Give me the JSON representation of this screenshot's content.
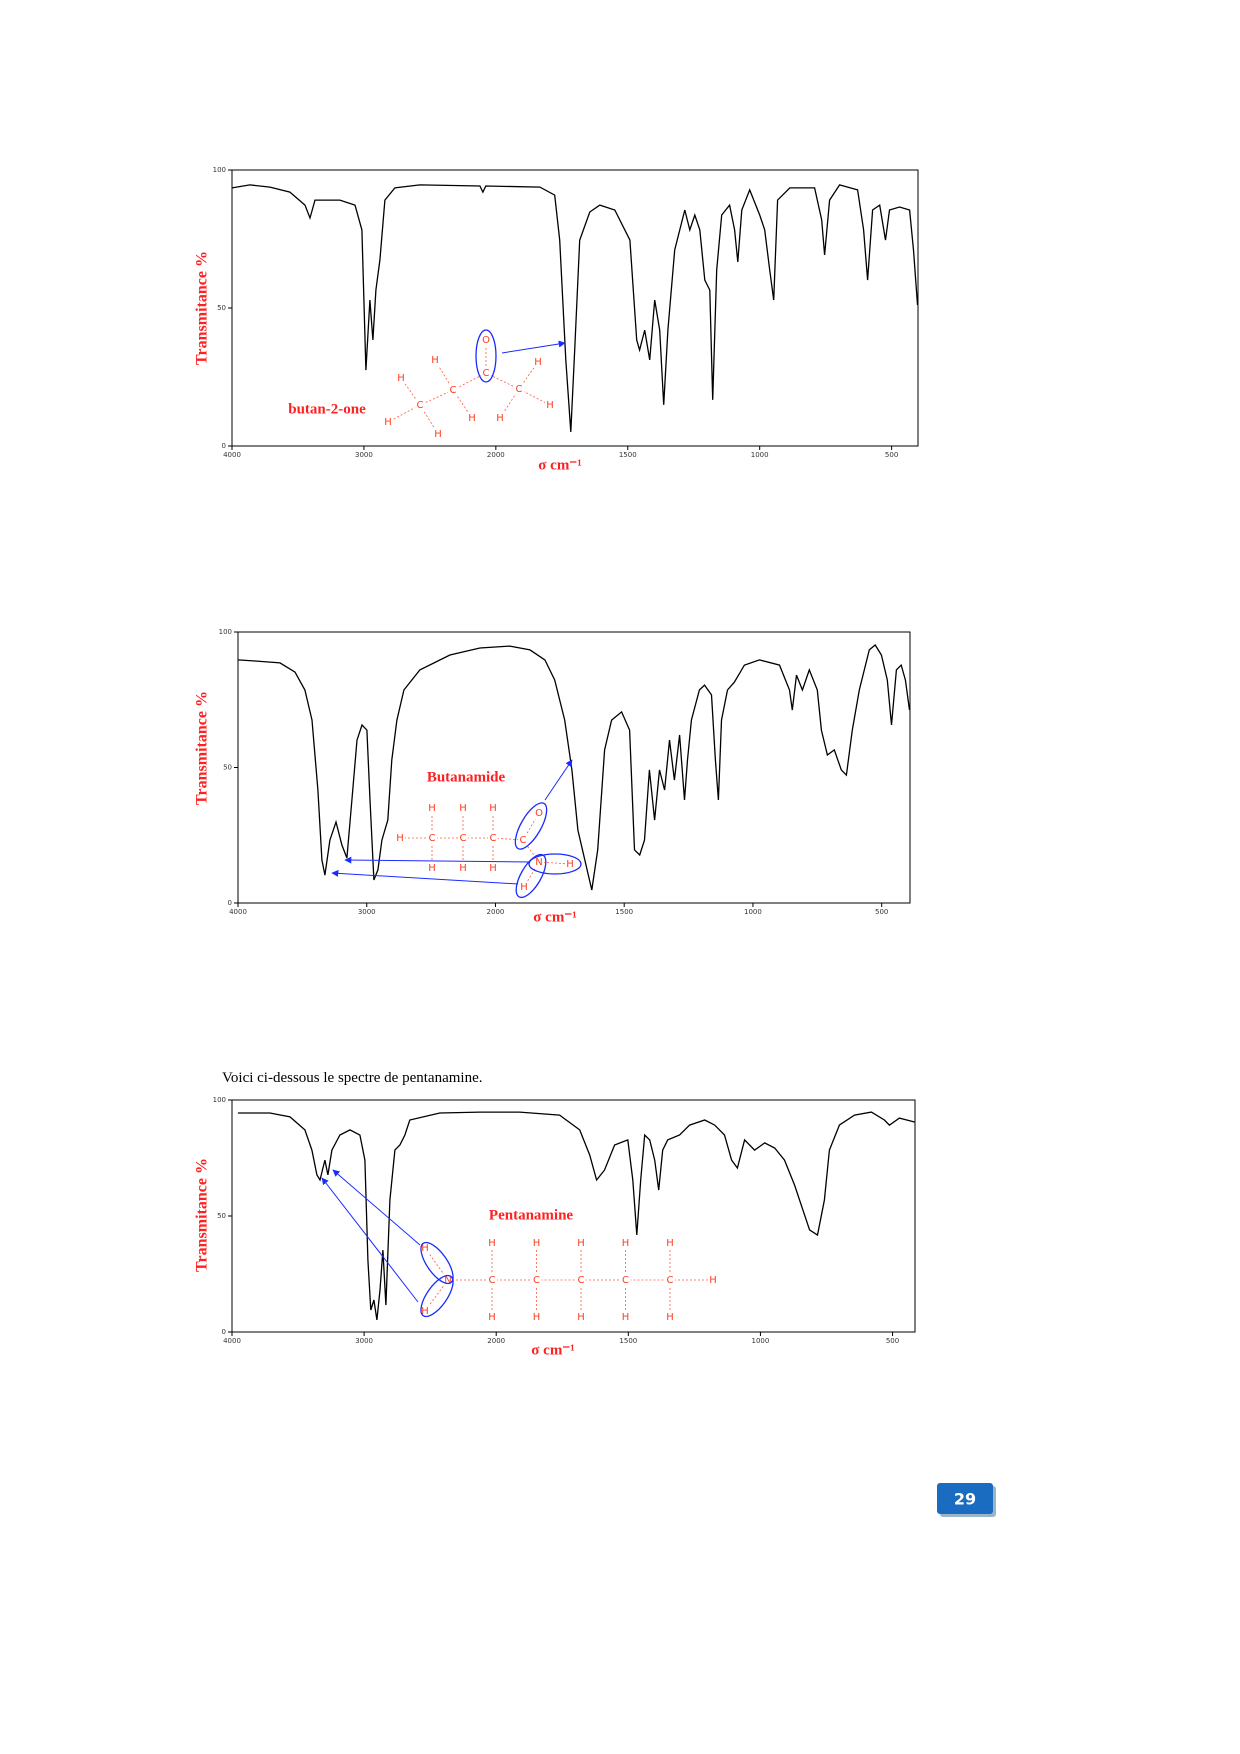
{
  "chart_data": [
    {
      "type": "line",
      "xscale": "piecewise-linear",
      "y_label": "Transmitance  %",
      "x_label": "σ   cm⁻¹",
      "color": "#000000",
      "xlim": [
        4000,
        400
      ],
      "xticks": [
        4000,
        3000,
        2000,
        1500,
        1000,
        500
      ],
      "ylim": [
        0,
        100
      ],
      "yticks": [
        0,
        50,
        100
      ],
      "x": [
        4000,
        3864,
        3712,
        3561,
        3447,
        3409,
        3371,
        3182,
        3068,
        3015,
        2985,
        2955,
        2932,
        2909,
        2879,
        2841,
        2765,
        2576,
        2121,
        2098,
        2076,
        1833,
        1777,
        1758,
        1735,
        1716,
        1701,
        1682,
        1644,
        1606,
        1549,
        1492,
        1466,
        1455,
        1436,
        1417,
        1398,
        1379,
        1364,
        1348,
        1322,
        1284,
        1265,
        1246,
        1227,
        1208,
        1189,
        1178,
        1163,
        1144,
        1114,
        1095,
        1083,
        1068,
        1038,
        1000,
        981,
        962,
        947,
        932,
        886,
        792,
        765,
        754,
        735,
        697,
        629,
        606,
        591,
        572,
        545,
        523,
        508,
        470,
        432,
        417,
        402
      ],
      "values": [
        93.5,
        94.6,
        93.8,
        92.0,
        87.3,
        82.6,
        89.1,
        89.1,
        87.3,
        78.3,
        27.5,
        52.9,
        38.4,
        56.5,
        67.4,
        89.1,
        93.5,
        94.6,
        94.2,
        92.0,
        94.2,
        93.8,
        90.9,
        74.6,
        31.2,
        5.1,
        34.8,
        74.6,
        84.8,
        87.3,
        85.5,
        74.6,
        38.4,
        34.8,
        42.0,
        31.2,
        52.9,
        42.0,
        14.9,
        42.0,
        71.0,
        85.5,
        78.3,
        83.7,
        78.3,
        60.1,
        56.5,
        16.7,
        63.8,
        83.7,
        87.3,
        78.3,
        66.7,
        85.5,
        92.8,
        83.7,
        78.3,
        63.8,
        52.9,
        89.1,
        93.5,
        93.5,
        81.9,
        69.2,
        89.1,
        94.6,
        92.8,
        78.3,
        60.1,
        85.5,
        87.3,
        74.6,
        85.5,
        86.6,
        85.5,
        71.0,
        51.1
      ],
      "molecule": {
        "name": "butan-2-one",
        "atoms": [
          "O",
          "C",
          "H",
          "H",
          "C",
          "C",
          "H",
          "H",
          "H",
          "C",
          "H",
          "H",
          "H"
        ]
      }
    },
    {
      "type": "line",
      "xscale": "piecewise-linear",
      "y_label": "Transmitance  %",
      "x_label": "σ   cm⁻¹",
      "color": "#000000",
      "xlim": [
        4000,
        390
      ],
      "xticks": [
        4000,
        3000,
        2000,
        1500,
        1000,
        500
      ],
      "ylim": [
        0,
        100
      ],
      "yticks": [
        0,
        50,
        100
      ],
      "x": [
        4000,
        3868,
        3674,
        3557,
        3480,
        3425,
        3379,
        3348,
        3325,
        3286,
        3239,
        3193,
        3154,
        3115,
        3076,
        3037,
        2999,
        2975,
        2944,
        2913,
        2882,
        2836,
        2805,
        2766,
        2711,
        2587,
        2354,
        2121,
        1944,
        1866,
        1808,
        1770,
        1731,
        1703,
        1680,
        1653,
        1626,
        1603,
        1576,
        1549,
        1510,
        1479,
        1460,
        1440,
        1421,
        1402,
        1382,
        1363,
        1343,
        1324,
        1305,
        1285,
        1266,
        1254,
        1239,
        1208,
        1188,
        1161,
        1146,
        1134,
        1122,
        1099,
        1072,
        1033,
        975,
        897,
        858,
        847,
        831,
        808,
        781,
        750,
        734,
        711,
        684,
        657,
        637,
        614,
        587,
        548,
        525,
        501,
        478,
        462,
        443,
        424,
        408,
        392
      ],
      "values": [
        89.7,
        89.3,
        88.6,
        85.2,
        78.6,
        67.5,
        41.7,
        15.9,
        10.3,
        23.2,
        29.9,
        21.4,
        16.6,
        38.0,
        60.1,
        65.7,
        63.8,
        38.0,
        8.5,
        12.2,
        23.2,
        30.6,
        52.8,
        67.5,
        78.6,
        86.0,
        91.5,
        94.1,
        94.8,
        93.4,
        89.7,
        82.3,
        67.5,
        49.1,
        26.9,
        15.9,
        4.8,
        19.6,
        56.5,
        67.5,
        70.5,
        63.8,
        19.6,
        17.7,
        23.2,
        49.1,
        30.6,
        49.1,
        41.7,
        60.1,
        45.4,
        62.0,
        38.0,
        52.8,
        67.5,
        78.6,
        80.4,
        76.8,
        52.8,
        38.0,
        67.5,
        78.6,
        81.5,
        87.8,
        89.7,
        87.8,
        78.6,
        71.2,
        84.1,
        78.6,
        86.0,
        78.6,
        63.8,
        54.6,
        56.5,
        49.1,
        47.2,
        63.8,
        78.6,
        93.4,
        95.2,
        91.5,
        82.3,
        65.7,
        86.0,
        87.8,
        82.3,
        71.2
      ],
      "molecule": {
        "name": "Butanamide",
        "atoms": [
          "H",
          "H",
          "H",
          "H",
          "C",
          "C",
          "C",
          "H",
          "H",
          "H",
          "C",
          "O",
          "N",
          "H",
          "H"
        ]
      }
    },
    {
      "type": "line",
      "xscale": "piecewise-linear",
      "y_label": "Transmitance  %",
      "x_label": "σ   cm⁻¹",
      "color": "#000000",
      "xlim": [
        4000,
        415
      ],
      "xticks": [
        4000,
        3000,
        2000,
        1500,
        1000,
        500
      ],
      "ylim": [
        0,
        100
      ],
      "yticks": [
        0,
        50,
        100
      ],
      "x": [
        3955,
        3713,
        3561,
        3448,
        3395,
        3357,
        3334,
        3297,
        3274,
        3244,
        3183,
        3107,
        3032,
        2994,
        2971,
        2949,
        2926,
        2903,
        2880,
        2858,
        2835,
        2805,
        2767,
        2729,
        2691,
        2654,
        2427,
        2124,
        1911,
        1760,
        1684,
        1646,
        1620,
        1590,
        1552,
        1502,
        1483,
        1468,
        1453,
        1438,
        1419,
        1400,
        1385,
        1370,
        1351,
        1306,
        1268,
        1211,
        1173,
        1136,
        1109,
        1087,
        1060,
        1022,
        984,
        946,
        909,
        871,
        833,
        814,
        784,
        758,
        739,
        701,
        644,
        580,
        531,
        512,
        474,
        417
      ],
      "values": [
        94.4,
        94.4,
        92.7,
        87.1,
        78.4,
        67.7,
        65.5,
        74.1,
        67.7,
        78.4,
        84.9,
        87.1,
        84.9,
        74.1,
        31.0,
        9.5,
        13.8,
        5.2,
        18.1,
        35.3,
        11.6,
        56.9,
        78.4,
        80.6,
        84.9,
        91.4,
        94.4,
        94.8,
        94.8,
        93.5,
        87.1,
        76.3,
        65.5,
        69.8,
        80.6,
        82.8,
        65.5,
        41.8,
        65.5,
        84.9,
        82.8,
        74.1,
        61.2,
        78.4,
        82.8,
        84.9,
        89.2,
        91.4,
        89.2,
        84.9,
        74.1,
        70.7,
        82.8,
        78.4,
        81.5,
        79.3,
        74.1,
        63.4,
        50.4,
        44.0,
        41.8,
        56.9,
        78.4,
        89.2,
        93.5,
        94.8,
        91.4,
        89.2,
        92.2,
        90.5
      ],
      "molecule": {
        "name": "Pentanamine",
        "atoms": [
          "H",
          "N",
          "H",
          "C",
          "H",
          "H",
          "C",
          "H",
          "H",
          "C",
          "H",
          "H",
          "C",
          "H",
          "H",
          "C",
          "H",
          "H",
          "H"
        ]
      }
    }
  ],
  "document": {
    "intro": "Voici ci-dessous le spectre de pentanamine.",
    "page_number": 29
  }
}
